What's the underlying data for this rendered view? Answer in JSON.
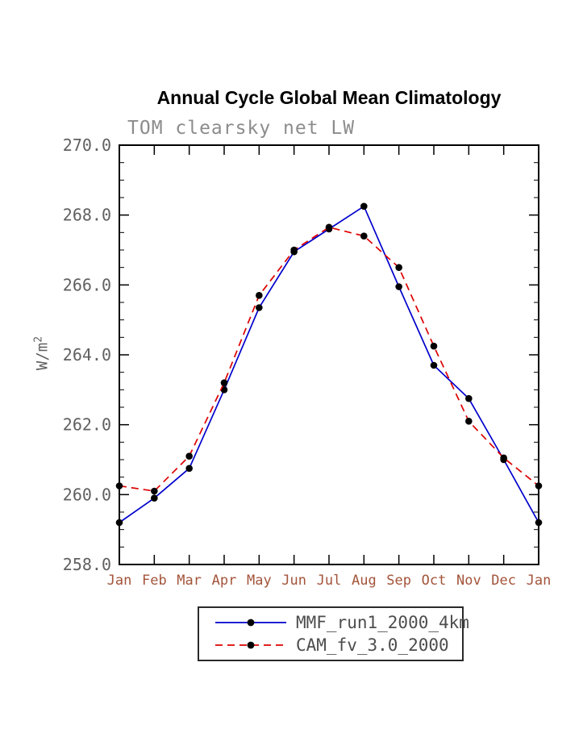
{
  "title": "Annual Cycle Global Mean Climatology",
  "subtitle": "TOM clearsky net LW",
  "y_axis_title": {
    "base": "W/m",
    "exponent": "2"
  },
  "colors": {
    "x_tick_labels": "#a3543a",
    "y_tick_labels": "#606060",
    "subtitle": "#8c8c8c",
    "axis": "#000000",
    "legend_text": "#4d4d4d"
  },
  "chart_data": {
    "type": "line",
    "title": "Annual Cycle Global Mean Climatology",
    "subtitle": "TOM clearsky net LW",
    "ylabel": "W/m^2",
    "xlabel": "",
    "grid": false,
    "legend_position": "bottom",
    "ylim": [
      258.0,
      270.0
    ],
    "y_ticks": [
      258.0,
      260.0,
      262.0,
      264.0,
      266.0,
      268.0,
      270.0
    ],
    "y_tick_labels": [
      "258.0",
      "260.0",
      "262.0",
      "264.0",
      "266.0",
      "268.0",
      "270.0"
    ],
    "x_tick_labels": [
      "Jan",
      "Feb",
      "Mar",
      "Apr",
      "May",
      "Jun",
      "Jul",
      "Aug",
      "Sep",
      "Oct",
      "Nov",
      "Dec",
      "Jan"
    ],
    "series": [
      {
        "name": "MMF_run1_2000_4km",
        "color": "#0000cc",
        "line_style": "solid",
        "dash": "none",
        "marker": "filled-circle-black",
        "values": [
          259.2,
          259.9,
          260.75,
          263.0,
          265.35,
          266.95,
          267.6,
          268.25,
          265.95,
          263.7,
          262.75,
          261.0,
          259.2
        ]
      },
      {
        "name": "CAM_fv_3.0_2000",
        "color": "#dd0000",
        "line_style": "dashed",
        "dash": "9,6",
        "marker": "filled-circle-black",
        "values": [
          260.25,
          260.1,
          261.1,
          263.2,
          265.7,
          267.0,
          267.65,
          267.4,
          266.5,
          264.25,
          262.1,
          261.05,
          260.25
        ]
      }
    ]
  }
}
